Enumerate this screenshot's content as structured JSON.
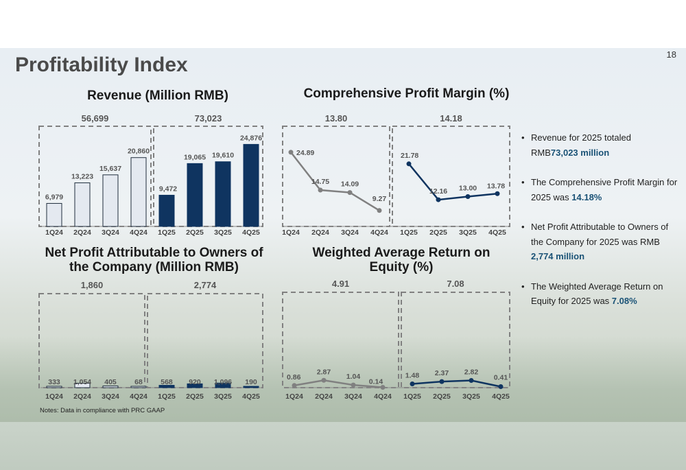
{
  "page": {
    "title": "Profitability Index",
    "page_number": "18",
    "notes": "Notes: Data in compliance with PRC GAAP"
  },
  "colors": {
    "q24": "#e4e9f0",
    "q25": "#0f3460",
    "line24": "#808080",
    "line25": "#0f3460",
    "accent": "#1a5276"
  },
  "chart_data": [
    {
      "type": "bar",
      "title": "Revenue  (Million RMB)",
      "categories": [
        "1Q24",
        "2Q24",
        "3Q24",
        "4Q24",
        "1Q25",
        "2Q25",
        "3Q25",
        "4Q25"
      ],
      "values": [
        6979,
        13223,
        15637,
        20860,
        9472,
        19065,
        19610,
        24876
      ],
      "labels": [
        "6,979",
        "13,223",
        "15,637",
        "20,860",
        "9,472",
        "19,065",
        "19,610",
        "24,876"
      ],
      "group_totals": [
        "56,699",
        "73,023"
      ],
      "ylim": [
        0,
        26000
      ]
    },
    {
      "type": "line",
      "title": "Comprehensive Profit Margin (%)",
      "categories": [
        "1Q24",
        "2Q24",
        "3Q24",
        "4Q24",
        "1Q25",
        "2Q25",
        "3Q25",
        "4Q25"
      ],
      "values": [
        24.89,
        14.75,
        14.09,
        9.27,
        21.78,
        12.16,
        13.0,
        13.78
      ],
      "labels": [
        "24.89",
        "14.75",
        "14.09",
        "9.27",
        "21.78",
        "12.16",
        "13.00",
        "13.78"
      ],
      "group_totals": [
        "13.80",
        "14.18"
      ],
      "ylim": [
        5,
        28
      ]
    },
    {
      "type": "bar",
      "title": "Net Profit Attributable to Owners of the Company  (Million RMB)",
      "categories": [
        "1Q24",
        "2Q24",
        "3Q24",
        "4Q24",
        "1Q25",
        "2Q25",
        "3Q25",
        "4Q25"
      ],
      "values": [
        333,
        1054,
        405,
        68,
        568,
        920,
        1096,
        190
      ],
      "labels": [
        "333",
        "1,054",
        "405",
        "68",
        "568",
        "920",
        "1,096",
        "190"
      ],
      "group_totals": [
        "1,860",
        "2,774"
      ],
      "ylim": [
        0,
        20000
      ]
    },
    {
      "type": "line",
      "title": "Weighted Average Return on Equity  (%)",
      "categories": [
        "1Q24",
        "2Q24",
        "3Q24",
        "4Q24",
        "1Q25",
        "2Q25",
        "3Q25",
        "4Q25"
      ],
      "values": [
        0.86,
        2.87,
        1.04,
        0.14,
        1.48,
        2.37,
        2.82,
        0.41
      ],
      "labels": [
        "0.86",
        "2.87",
        "1.04",
        "0.14",
        "1.48",
        "2.37",
        "2.82",
        "0.41"
      ],
      "group_totals": [
        "4.91",
        "7.08"
      ],
      "ylim": [
        0,
        30
      ]
    }
  ],
  "bullets": [
    {
      "pre": "Revenue for 2025 totaled RMB",
      "hl": "73,023 million",
      "post": ""
    },
    {
      "pre": "The Comprehensive Profit Margin for 2025 was ",
      "hl": "14.18%",
      "post": ""
    },
    {
      "pre": "Net Profit Attributable to Owners of the Company for 2025 was RMB ",
      "hl": "2,774 million",
      "post": ""
    },
    {
      "pre": "The Weighted Average Return on Equity for 2025 was ",
      "hl": "7.08%",
      "post": ""
    }
  ]
}
